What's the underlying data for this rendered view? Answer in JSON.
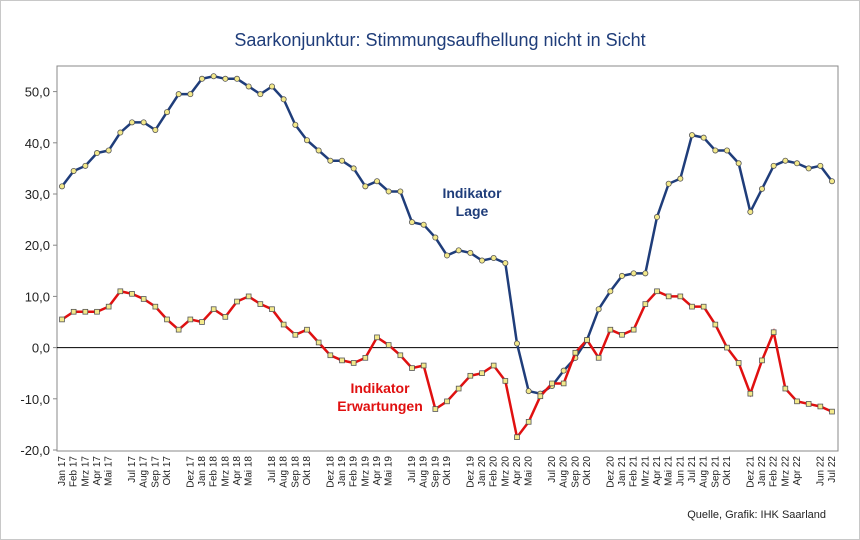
{
  "chart_data": {
    "type": "line",
    "title": "Saarkonjunktur: Stimmungsaufhellung nicht in Sicht",
    "source": "Quelle, Grafik: IHK Saarland",
    "annotations": [
      [
        "Indikator",
        "Lage"
      ],
      [
        "Indikator",
        "Erwartungen"
      ]
    ],
    "categories": [
      "Jan 17",
      "Feb 17",
      "Mrz 17",
      "Apr 17",
      "Mai 17",
      null,
      "Jul 17",
      "Aug 17",
      "Sep 17",
      "Okt 17",
      null,
      "Dez 17",
      "Jan 18",
      "Feb 18",
      "Mrz 18",
      "Apr 18",
      "Mai 18",
      null,
      "Jul 18",
      "Aug 18",
      "Sep 18",
      "Okt 18",
      null,
      "Dez 18",
      "Jan 19",
      "Feb 19",
      "Mrz 19",
      "Apr 19",
      "Mai 19",
      null,
      "Jul 19",
      "Aug 19",
      "Sep 19",
      "Okt 19",
      null,
      "Dez 19",
      "Jan 20",
      "Feb 20",
      "Mrz 20",
      "Apr 20",
      "Mai 20",
      null,
      "Jul 20",
      "Aug 20",
      "Sep 20",
      "Okt 20",
      null,
      "Dez 20",
      "Jan 21",
      "Feb 21",
      "Mrz 21",
      "Apr 21",
      "Mai 21",
      "Jun 21",
      "Jul 21",
      "Aug 21",
      "Sep 21",
      "Okt 21",
      null,
      "Dez 21",
      "Jan 22",
      "Feb 22",
      "Mrz 22",
      "Apr 22",
      null,
      "Jun 22",
      "Jul 22"
    ],
    "series": [
      {
        "name": "Indikator Lage",
        "color": "#1f3d7a",
        "values": [
          31.5,
          34.5,
          35.5,
          38,
          38.5,
          42,
          44,
          44,
          42.5,
          46,
          49.5,
          49.5,
          52.5,
          53,
          52.5,
          52.5,
          51,
          49.5,
          51,
          48.5,
          43.5,
          40.5,
          38.5,
          36.5,
          36.5,
          35,
          31.5,
          32.5,
          30.5,
          30.5,
          24.5,
          24,
          21.5,
          18,
          19,
          18.5,
          17,
          17.5,
          16.5,
          0.8,
          -8.5,
          -9,
          -7.5,
          -4.5,
          -2,
          1.5,
          7.5,
          11,
          14,
          14.5,
          14.5,
          25.5,
          32,
          33,
          41.5,
          41,
          38.5,
          38.5,
          36,
          26.5,
          31,
          35.5,
          36.5,
          36,
          35,
          35.5,
          32.5
        ]
      },
      {
        "name": "Indikator Erwartungen",
        "color": "#e01010",
        "values": [
          5.5,
          7,
          7,
          7,
          8,
          11,
          10.5,
          9.5,
          8,
          5.5,
          3.5,
          5.5,
          5,
          7.5,
          6,
          9,
          10,
          8.5,
          7.5,
          4.5,
          2.5,
          3.5,
          1,
          -1.5,
          -2.5,
          -3,
          -2,
          2,
          0.5,
          -1.5,
          -4,
          -3.5,
          -12,
          -10.5,
          -8,
          -5.5,
          -5,
          -3.5,
          -6.5,
          -17.5,
          -14.5,
          -9.5,
          -7,
          -7,
          -1,
          1.5,
          -2,
          3.5,
          2.5,
          3.5,
          8.5,
          11,
          10,
          10,
          8,
          8,
          4.5,
          0,
          -3,
          -9,
          -2.5,
          3,
          -8,
          -10.5,
          -11,
          -11.5,
          -12.5
        ]
      }
    ],
    "marker_color": "#f3e98a",
    "ylim": [
      -20,
      55
    ],
    "yticks": [
      {
        "value": -20,
        "label": "-20,0"
      },
      {
        "value": -10,
        "label": "-10,0"
      },
      {
        "value": 0,
        "label": "0,0"
      },
      {
        "value": 10,
        "label": "10,0"
      },
      {
        "value": 20,
        "label": "20,0"
      },
      {
        "value": 30,
        "label": "30,0"
      },
      {
        "value": 40,
        "label": "40,0"
      },
      {
        "value": 50,
        "label": "50,0"
      }
    ],
    "grid": false
  }
}
